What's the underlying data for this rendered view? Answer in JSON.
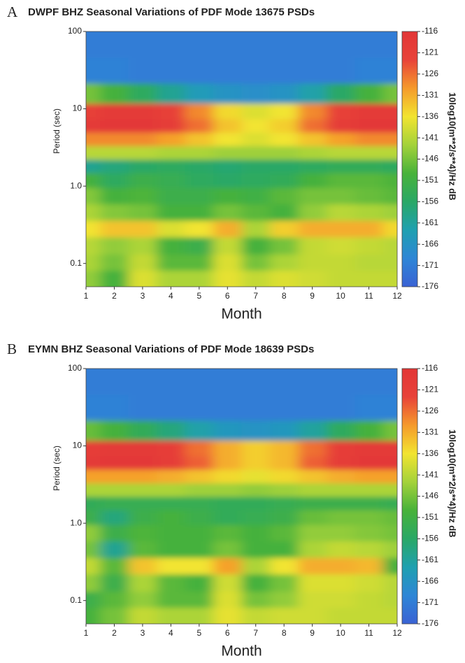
{
  "chart_data": [
    {
      "type": "heatmap",
      "panel": "A",
      "title": "DWPF BHZ Seasonal Variations of PDF Mode 13675 PSDs",
      "xlabel": "Month",
      "ylabel": "Period (sec)",
      "zlabel": "10log10(m**2/s**4)/Hz dB",
      "x": [
        1,
        2,
        3,
        4,
        5,
        6,
        7,
        8,
        9,
        10,
        11,
        12
      ],
      "xlim": [
        1,
        12
      ],
      "xticks": [
        1,
        2,
        3,
        4,
        5,
        6,
        7,
        8,
        9,
        10,
        11,
        12
      ],
      "y": [
        70,
        30,
        15,
        9,
        6,
        4,
        2.7,
        1.8,
        1.2,
        0.75,
        0.45,
        0.28,
        0.17,
        0.1,
        0.065
      ],
      "ylim": [
        0.05,
        100
      ],
      "ylog": true,
      "yticks": [
        {
          "value": 0.1,
          "label": "0.1"
        },
        {
          "value": 1,
          "label": "1.0"
        },
        10,
        100
      ],
      "z": [
        [
          -171,
          -171,
          -171,
          -171,
          -171,
          -171,
          -171,
          -171,
          -171,
          -171,
          -171,
          -171
        ],
        [
          -170,
          -170,
          -171,
          -171,
          -171,
          -171,
          -171,
          -171,
          -171,
          -171,
          -170,
          -170
        ],
        [
          -146,
          -150,
          -155,
          -160,
          -164,
          -166,
          -167,
          -166,
          -162,
          -156,
          -150,
          -146
        ],
        [
          -121,
          -118,
          -118,
          -121,
          -128,
          -135,
          -138,
          -136,
          -128,
          -121,
          -118,
          -118
        ],
        [
          -118,
          -117,
          -117,
          -119,
          -126,
          -133,
          -136,
          -134,
          -126,
          -119,
          -117,
          -117
        ],
        [
          -128,
          -128,
          -128,
          -130,
          -133,
          -136,
          -138,
          -136,
          -133,
          -130,
          -128,
          -128
        ],
        [
          -141,
          -141,
          -141,
          -142,
          -142,
          -143,
          -143,
          -143,
          -142,
          -141,
          -141,
          -141
        ],
        [
          -160,
          -158,
          -156,
          -155,
          -156,
          -157,
          -156,
          -156,
          -155,
          -154,
          -154,
          -155
        ],
        [
          -150,
          -155,
          -152,
          -153,
          -155,
          -156,
          -155,
          -154,
          -150,
          -148,
          -148,
          -149
        ],
        [
          -145,
          -150,
          -149,
          -152,
          -152,
          -150,
          -151,
          -148,
          -146,
          -146,
          -147,
          -148
        ],
        [
          -142,
          -145,
          -146,
          -150,
          -150,
          -146,
          -148,
          -150,
          -144,
          -141,
          -142,
          -143
        ],
        [
          -136,
          -133,
          -133,
          -138,
          -136,
          -131,
          -142,
          -134,
          -131,
          -131,
          -131,
          -135
        ],
        [
          -141,
          -144,
          -142,
          -150,
          -152,
          -140,
          -150,
          -146,
          -140,
          -139,
          -140,
          -141
        ],
        [
          -142,
          -146,
          -140,
          -148,
          -148,
          -138,
          -146,
          -142,
          -140,
          -140,
          -141,
          -141
        ],
        [
          -144,
          -150,
          -138,
          -142,
          -142,
          -137,
          -140,
          -138,
          -139,
          -140,
          -140,
          -140
        ]
      ],
      "zlim": [
        -176,
        -116
      ],
      "zticks": [
        -116,
        -121,
        -126,
        -131,
        -136,
        -141,
        -146,
        -151,
        -156,
        -161,
        -166,
        -171,
        -176
      ],
      "colormap": [
        "#3a62d4",
        "#2e86d6",
        "#1fa0b0",
        "#2aa866",
        "#48b23a",
        "#a4d23a",
        "#f2e430",
        "#f59a2c",
        "#e8433a",
        "#e23636"
      ]
    },
    {
      "type": "heatmap",
      "panel": "B",
      "title": "EYMN BHZ Seasonal Variations of PDF Mode 18639 PSDs",
      "xlabel": "Month",
      "ylabel": "Period (sec)",
      "zlabel": "10log10(m**2/s**4)/Hz dB",
      "x": [
        1,
        2,
        3,
        4,
        5,
        6,
        7,
        8,
        9,
        10,
        11,
        12
      ],
      "xlim": [
        1,
        12
      ],
      "xticks": [
        1,
        2,
        3,
        4,
        5,
        6,
        7,
        8,
        9,
        10,
        11,
        12
      ],
      "y": [
        70,
        30,
        15,
        9,
        6,
        4,
        2.7,
        1.8,
        1.2,
        0.75,
        0.45,
        0.28,
        0.17,
        0.1,
        0.065
      ],
      "ylim": [
        0.05,
        100
      ],
      "ylog": true,
      "yticks": [
        {
          "value": 0.1,
          "label": "0.1"
        },
        {
          "value": 1,
          "label": "1.0"
        },
        10,
        100
      ],
      "z": [
        [
          -171,
          -171,
          -171,
          -171,
          -171,
          -171,
          -171,
          -171,
          -171,
          -171,
          -171,
          -171
        ],
        [
          -170,
          -170,
          -171,
          -171,
          -171,
          -171,
          -171,
          -171,
          -171,
          -171,
          -170,
          -170
        ],
        [
          -147,
          -150,
          -154,
          -158,
          -162,
          -165,
          -166,
          -165,
          -161,
          -155,
          -150,
          -146
        ],
        [
          -120,
          -118,
          -118,
          -120,
          -126,
          -131,
          -134,
          -132,
          -126,
          -120,
          -118,
          -118
        ],
        [
          -118,
          -117,
          -117,
          -119,
          -125,
          -131,
          -134,
          -132,
          -125,
          -119,
          -117,
          -117
        ],
        [
          -130,
          -130,
          -130,
          -131,
          -133,
          -135,
          -137,
          -135,
          -133,
          -131,
          -130,
          -130
        ],
        [
          -142,
          -142,
          -142,
          -142,
          -143,
          -143,
          -144,
          -143,
          -142,
          -142,
          -142,
          -142
        ],
        [
          -154,
          -153,
          -153,
          -153,
          -153,
          -154,
          -154,
          -153,
          -152,
          -152,
          -152,
          -153
        ],
        [
          -152,
          -158,
          -152,
          -150,
          -152,
          -154,
          -153,
          -152,
          -147,
          -146,
          -146,
          -147
        ],
        [
          -144,
          -152,
          -149,
          -150,
          -150,
          -148,
          -150,
          -148,
          -144,
          -144,
          -145,
          -146
        ],
        [
          -146,
          -160,
          -148,
          -150,
          -150,
          -146,
          -150,
          -150,
          -142,
          -140,
          -141,
          -143
        ],
        [
          -140,
          -148,
          -133,
          -136,
          -136,
          -130,
          -142,
          -136,
          -131,
          -131,
          -132,
          -150
        ],
        [
          -144,
          -152,
          -142,
          -148,
          -150,
          -139,
          -150,
          -146,
          -138,
          -138,
          -139,
          -141
        ],
        [
          -152,
          -148,
          -144,
          -148,
          -148,
          -138,
          -146,
          -144,
          -139,
          -139,
          -140,
          -141
        ],
        [
          -150,
          -146,
          -140,
          -142,
          -142,
          -137,
          -140,
          -139,
          -139,
          -140,
          -140,
          -140
        ]
      ],
      "zlim": [
        -176,
        -116
      ],
      "zticks": [
        -116,
        -121,
        -126,
        -131,
        -136,
        -141,
        -146,
        -151,
        -156,
        -161,
        -166,
        -171,
        -176
      ],
      "colormap": [
        "#3a62d4",
        "#2e86d6",
        "#1fa0b0",
        "#2aa866",
        "#48b23a",
        "#a4d23a",
        "#f2e430",
        "#f59a2c",
        "#e8433a",
        "#e23636"
      ]
    }
  ]
}
